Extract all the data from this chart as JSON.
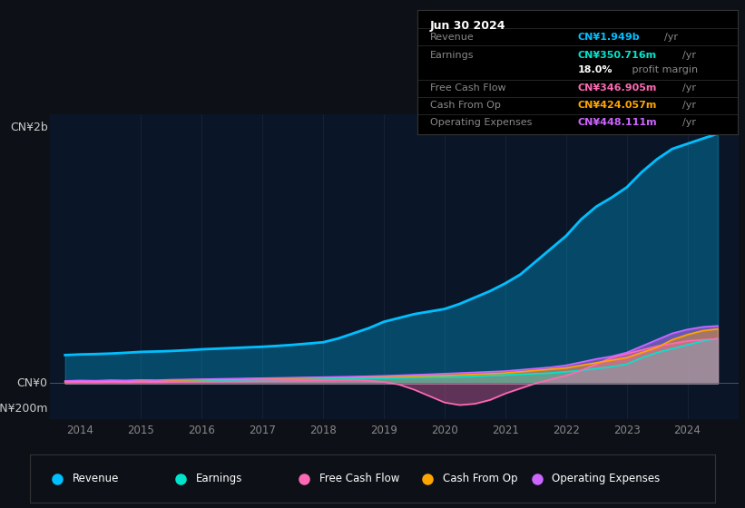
{
  "bg_color": "#0d1117",
  "plot_bg_color": "#0a1628",
  "title_box": {
    "date": "Jun 30 2024",
    "rows": [
      {
        "label": "Revenue",
        "value": "CN¥1.949b",
        "unit": "/yr",
        "value_color": "#00bfff"
      },
      {
        "label": "Earnings",
        "value": "CN¥350.716m",
        "unit": "/yr",
        "value_color": "#00e5cc"
      },
      {
        "label": "",
        "value": "18.0%",
        "unit": " profit margin",
        "value_color": "#ffffff"
      },
      {
        "label": "Free Cash Flow",
        "value": "CN¥346.905m",
        "unit": "/yr",
        "value_color": "#ff69b4"
      },
      {
        "label": "Cash From Op",
        "value": "CN¥424.057m",
        "unit": "/yr",
        "value_color": "#ffa500"
      },
      {
        "label": "Operating Expenses",
        "value": "CN¥448.111m",
        "unit": "/yr",
        "value_color": "#cc66ff"
      }
    ]
  },
  "ylabel_top": "CN¥2b",
  "ylabel_neg": "-CN¥200m",
  "ylim": [
    -280,
    2100
  ],
  "xlim": [
    2013.5,
    2024.85
  ],
  "xticks": [
    2014,
    2015,
    2016,
    2017,
    2018,
    2019,
    2020,
    2021,
    2022,
    2023,
    2024
  ],
  "series_colors": {
    "revenue": "#00bfff",
    "earnings": "#00e5cc",
    "free_cash_flow": "#ff69b4",
    "cash_from_op": "#ffa500",
    "operating_expenses": "#cc66ff"
  },
  "legend": [
    {
      "label": "Revenue",
      "color": "#00bfff"
    },
    {
      "label": "Earnings",
      "color": "#00e5cc"
    },
    {
      "label": "Free Cash Flow",
      "color": "#ff69b4"
    },
    {
      "label": "Cash From Op",
      "color": "#ffa500"
    },
    {
      "label": "Operating Expenses",
      "color": "#cc66ff"
    }
  ],
  "x_years": [
    2013.75,
    2014.0,
    2014.25,
    2014.5,
    2014.75,
    2015.0,
    2015.25,
    2015.5,
    2015.75,
    2016.0,
    2016.25,
    2016.5,
    2016.75,
    2017.0,
    2017.25,
    2017.5,
    2017.75,
    2018.0,
    2018.25,
    2018.5,
    2018.75,
    2019.0,
    2019.25,
    2019.5,
    2019.75,
    2020.0,
    2020.25,
    2020.5,
    2020.75,
    2021.0,
    2021.25,
    2021.5,
    2021.75,
    2022.0,
    2022.25,
    2022.5,
    2022.75,
    2023.0,
    2023.25,
    2023.5,
    2023.75,
    2024.0,
    2024.25,
    2024.5
  ],
  "revenue": [
    220,
    225,
    228,
    232,
    238,
    245,
    248,
    252,
    258,
    265,
    270,
    275,
    280,
    285,
    292,
    300,
    310,
    320,
    350,
    390,
    430,
    480,
    510,
    540,
    560,
    580,
    620,
    670,
    720,
    780,
    850,
    950,
    1050,
    1150,
    1280,
    1380,
    1450,
    1530,
    1650,
    1750,
    1830,
    1870,
    1910,
    1949
  ],
  "earnings": [
    8,
    10,
    9,
    12,
    11,
    14,
    13,
    15,
    16,
    18,
    19,
    20,
    22,
    24,
    26,
    28,
    30,
    32,
    34,
    36,
    38,
    40,
    42,
    44,
    46,
    48,
    50,
    55,
    60,
    65,
    70,
    75,
    80,
    90,
    100,
    115,
    130,
    150,
    200,
    240,
    270,
    300,
    330,
    350
  ],
  "free_cash_flow": [
    5,
    6,
    5,
    7,
    6,
    8,
    7,
    9,
    10,
    12,
    13,
    14,
    15,
    16,
    17,
    18,
    20,
    22,
    24,
    26,
    20,
    10,
    -10,
    -50,
    -100,
    -150,
    -170,
    -160,
    -130,
    -80,
    -40,
    0,
    30,
    60,
    100,
    150,
    200,
    230,
    260,
    290,
    310,
    330,
    340,
    347
  ],
  "cash_from_op": [
    15,
    18,
    16,
    20,
    19,
    22,
    20,
    24,
    26,
    28,
    30,
    32,
    34,
    36,
    38,
    40,
    42,
    44,
    46,
    48,
    50,
    52,
    54,
    56,
    58,
    60,
    65,
    70,
    75,
    80,
    90,
    100,
    110,
    120,
    140,
    160,
    180,
    200,
    240,
    280,
    340,
    380,
    410,
    424
  ],
  "operating_expenses": [
    18,
    22,
    20,
    24,
    22,
    26,
    24,
    28,
    30,
    32,
    34,
    36,
    38,
    40,
    42,
    44,
    46,
    48,
    50,
    52,
    55,
    58,
    62,
    66,
    70,
    75,
    80,
    85,
    90,
    95,
    105,
    115,
    125,
    140,
    165,
    190,
    210,
    240,
    290,
    340,
    390,
    420,
    440,
    448
  ]
}
